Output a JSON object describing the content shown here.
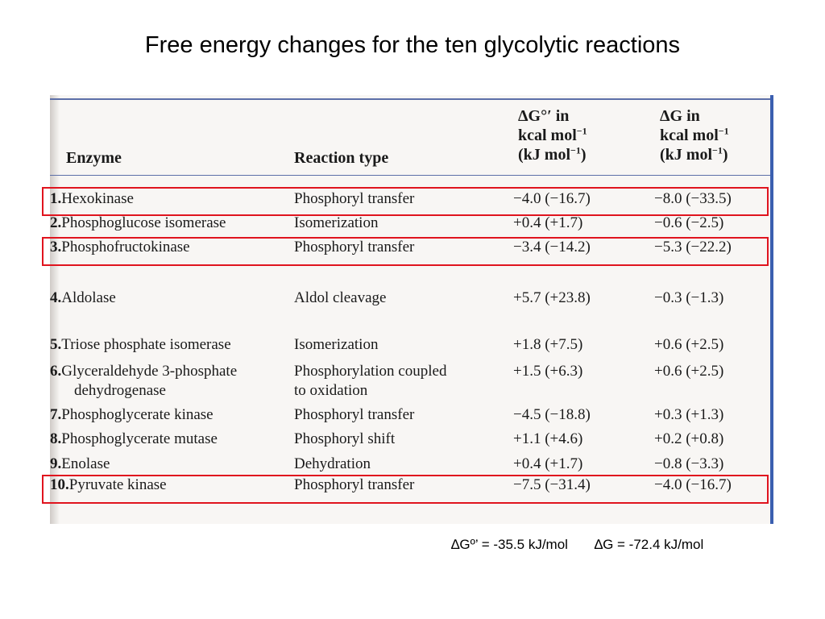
{
  "slide_title": "Free energy changes for the ten glycolytic reactions",
  "table": {
    "headers": {
      "enzyme": "Enzyme",
      "reaction_type": "Reaction type",
      "dg0_line1": "ΔG°′ in",
      "dg0_line2_base": "kcal mol",
      "dg0_line2_sup": "−1",
      "dg0_line3_base": "(kJ mol",
      "dg0_line3_sup": "−1",
      "dg0_line3_end": ")",
      "dg_line1": "ΔG in",
      "dg_line2_base": "kcal mol",
      "dg_line2_sup": "−1",
      "dg_line3_base": "(kJ mol",
      "dg_line3_sup": "−1",
      "dg_line3_end": ")"
    },
    "rows": [
      {
        "num": "1.",
        "enzyme": "Hexokinase",
        "enzyme_sub": "",
        "reaction": "Phosphoryl transfer",
        "reaction_sub": "",
        "dg0": "−4.0 (−16.7)",
        "dg": "−8.0 (−33.5)",
        "highlighted": true
      },
      {
        "num": "2.",
        "enzyme": "Phosphoglucose isomerase",
        "enzyme_sub": "",
        "reaction": "Isomerization",
        "reaction_sub": "",
        "dg0": "+0.4 (+1.7)",
        "dg": "−0.6 (−2.5)",
        "highlighted": false
      },
      {
        "num": "3.",
        "enzyme": "Phosphofructokinase",
        "enzyme_sub": "",
        "reaction": "Phosphoryl transfer",
        "reaction_sub": "",
        "dg0": "−3.4 (−14.2)",
        "dg": "−5.3 (−22.2)",
        "highlighted": true
      },
      {
        "num": "4.",
        "enzyme": "Aldolase",
        "enzyme_sub": "",
        "reaction": "Aldol cleavage",
        "reaction_sub": "",
        "dg0": "+5.7 (+23.8)",
        "dg": "−0.3 (−1.3)",
        "highlighted": false
      },
      {
        "num": "5.",
        "enzyme": "Triose phosphate isomerase",
        "enzyme_sub": "",
        "reaction": "Isomerization",
        "reaction_sub": "",
        "dg0": "+1.8 (+7.5)",
        "dg": "+0.6 (+2.5)",
        "highlighted": false
      },
      {
        "num": "6.",
        "enzyme": "Glyceraldehyde 3-phosphate",
        "enzyme_sub": "dehydrogenase",
        "reaction": "Phosphorylation coupled",
        "reaction_sub": "to oxidation",
        "dg0": "+1.5 (+6.3)",
        "dg": "+0.6 (+2.5)",
        "highlighted": false
      },
      {
        "num": "7.",
        "enzyme": "Phosphoglycerate kinase",
        "enzyme_sub": "",
        "reaction": "Phosphoryl transfer",
        "reaction_sub": "",
        "dg0": "−4.5 (−18.8)",
        "dg": "+0.3 (+1.3)",
        "highlighted": false
      },
      {
        "num": "8.",
        "enzyme": "Phosphoglycerate mutase",
        "enzyme_sub": "",
        "reaction": "Phosphoryl shift",
        "reaction_sub": "",
        "dg0": "+1.1 (+4.6)",
        "dg": "+0.2 (+0.8)",
        "highlighted": false
      },
      {
        "num": "9.",
        "enzyme": "Enolase",
        "enzyme_sub": "",
        "reaction": "Dehydration",
        "reaction_sub": "",
        "dg0": "+0.4 (+1.7)",
        "dg": "−0.8 (−3.3)",
        "highlighted": false
      },
      {
        "num": "10.",
        "enzyme": "Pyruvate kinase",
        "enzyme_sub": "",
        "reaction": "Phosphoryl transfer",
        "reaction_sub": "",
        "dg0": "−7.5 (−31.4)",
        "dg": "−4.0 (−16.7)",
        "highlighted": true
      }
    ]
  },
  "summary": {
    "dg0_total": "∆Gº’ = -35.5 kJ/mol",
    "dg_total": "∆G = -72.4  kJ/mol"
  },
  "colors": {
    "highlight": "#e0141e",
    "scan_border": "#3b5fb0"
  }
}
